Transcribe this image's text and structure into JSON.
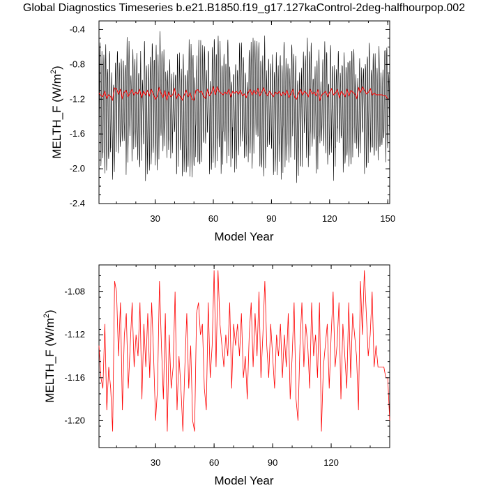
{
  "page": {
    "title": "Global Diagnostics Timeseries b.e21.B1850.f19_g17.127kaControl-2deg-halfhourpop.002"
  },
  "chart_data": [
    {
      "type": "line",
      "xlabel": "Model Year",
      "ylabel": "MELTH_F (W/m",
      "ylabel_sup": "2",
      "ylabel_tail": ")",
      "xlim": [
        1,
        151
      ],
      "ylim": [
        -2.4,
        -0.3
      ],
      "xticks": [
        30,
        60,
        90,
        120,
        150
      ],
      "xtick_labels": [
        "30",
        "60",
        "90",
        "120",
        "150"
      ],
      "yticks": [
        -0.4,
        -0.8,
        -1.2,
        -1.6,
        -2.0,
        -2.4
      ],
      "ytick_labels": [
        "-0.4",
        "-0.8",
        "-1.2",
        "-1.6",
        "-2.0",
        "-2.4"
      ],
      "series": [
        {
          "color": "#000000",
          "description_key": "monthly",
          "seasonal_cycle": {
            "min_range": [
              -2.1,
              -1.55
            ],
            "max_range": [
              -0.95,
              -0.5
            ],
            "samples_per_year": 12
          },
          "values_note_key": "annual_mean_envelope"
        },
        {
          "color": "#ff0000",
          "description_key": "annual",
          "x": [
            1,
            2,
            3,
            4,
            5,
            6,
            7,
            8,
            9,
            10,
            11,
            12,
            13,
            14,
            15,
            16,
            17,
            18,
            19,
            20,
            21,
            22,
            23,
            24,
            25,
            26,
            27,
            28,
            29,
            30,
            31,
            32,
            33,
            34,
            35,
            36,
            37,
            38,
            39,
            40,
            41,
            42,
            43,
            44,
            45,
            46,
            47,
            48,
            49,
            50,
            51,
            52,
            53,
            54,
            55,
            56,
            57,
            58,
            59,
            60,
            61,
            62,
            63,
            64,
            65,
            66,
            67,
            68,
            69,
            70,
            71,
            72,
            73,
            74,
            75,
            76,
            77,
            78,
            79,
            80,
            81,
            82,
            83,
            84,
            85,
            86,
            87,
            88,
            89,
            90,
            91,
            92,
            93,
            94,
            95,
            96,
            97,
            98,
            99,
            100,
            101,
            102,
            103,
            104,
            105,
            106,
            107,
            108,
            109,
            110,
            111,
            112,
            113,
            114,
            115,
            116,
            117,
            118,
            119,
            120,
            121,
            122,
            123,
            124,
            125,
            126,
            127,
            128,
            129,
            130,
            131,
            132,
            133,
            134,
            135,
            136,
            137,
            138,
            139,
            140,
            141,
            142,
            143,
            144,
            145,
            146,
            147,
            148,
            149,
            150
          ],
          "values": [
            -1.13,
            -1.16,
            -1.17,
            -1.11,
            -1.19,
            -1.15,
            -1.17,
            -1.21,
            -1.07,
            -1.08,
            -1.14,
            -1.09,
            -1.19,
            -1.12,
            -1.1,
            -1.17,
            -1.13,
            -1.09,
            -1.15,
            -1.12,
            -1.14,
            -1.09,
            -1.18,
            -1.11,
            -1.15,
            -1.1,
            -1.16,
            -1.09,
            -1.14,
            -1.2,
            -1.17,
            -1.07,
            -1.13,
            -1.18,
            -1.1,
            -1.21,
            -1.12,
            -1.17,
            -1.15,
            -1.08,
            -1.19,
            -1.14,
            -1.17,
            -1.21,
            -1.15,
            -1.1,
            -1.17,
            -1.13,
            -1.2,
            -1.21,
            -1.1,
            -1.09,
            -1.12,
            -1.11,
            -1.17,
            -1.19,
            -1.09,
            -1.16,
            -1.13,
            -1.06,
            -1.15,
            -1.06,
            -1.11,
            -1.13,
            -1.15,
            -1.12,
            -1.14,
            -1.09,
            -1.17,
            -1.11,
            -1.13,
            -1.11,
            -1.14,
            -1.1,
            -1.16,
            -1.14,
            -1.18,
            -1.12,
            -1.09,
            -1.15,
            -1.1,
            -1.14,
            -1.08,
            -1.16,
            -1.12,
            -1.07,
            -1.13,
            -1.16,
            -1.11,
            -1.14,
            -1.17,
            -1.12,
            -1.14,
            -1.11,
            -1.16,
            -1.12,
            -1.15,
            -1.1,
            -1.18,
            -1.14,
            -1.09,
            -1.18,
            -1.2,
            -1.13,
            -1.09,
            -1.15,
            -1.11,
            -1.13,
            -1.17,
            -1.09,
            -1.14,
            -1.12,
            -1.16,
            -1.09,
            -1.21,
            -1.15,
            -1.13,
            -1.11,
            -1.17,
            -1.12,
            -1.08,
            -1.15,
            -1.13,
            -1.09,
            -1.18,
            -1.11,
            -1.14,
            -1.17,
            -1.09,
            -1.16,
            -1.1,
            -1.12,
            -1.14,
            -1.19,
            -1.07,
            -1.12,
            -1.06,
            -1.1,
            -1.14,
            -1.12,
            -1.08,
            -1.15,
            -1.13,
            -1.15,
            -1.15,
            -1.15,
            -1.15,
            -1.16,
            -1.16,
            -1.2
          ]
        }
      ]
    },
    {
      "type": "line",
      "xlabel": "Model Year",
      "ylabel": "MELTH_F (W/m",
      "ylabel_sup": "2",
      "ylabel_tail": ")",
      "xlim": [
        1,
        150
      ],
      "ylim": [
        -1.225,
        -1.055
      ],
      "xticks": [
        30,
        60,
        90,
        120
      ],
      "xtick_labels": [
        "30",
        "60",
        "90",
        "120"
      ],
      "yticks": [
        -1.08,
        -1.12,
        -1.16,
        -1.2
      ],
      "ytick_labels": [
        "-1.08",
        "-1.12",
        "-1.16",
        "-1.20"
      ],
      "series": [
        {
          "color": "#ff0000",
          "values_from": "chart_data.0.series.1"
        }
      ]
    }
  ]
}
